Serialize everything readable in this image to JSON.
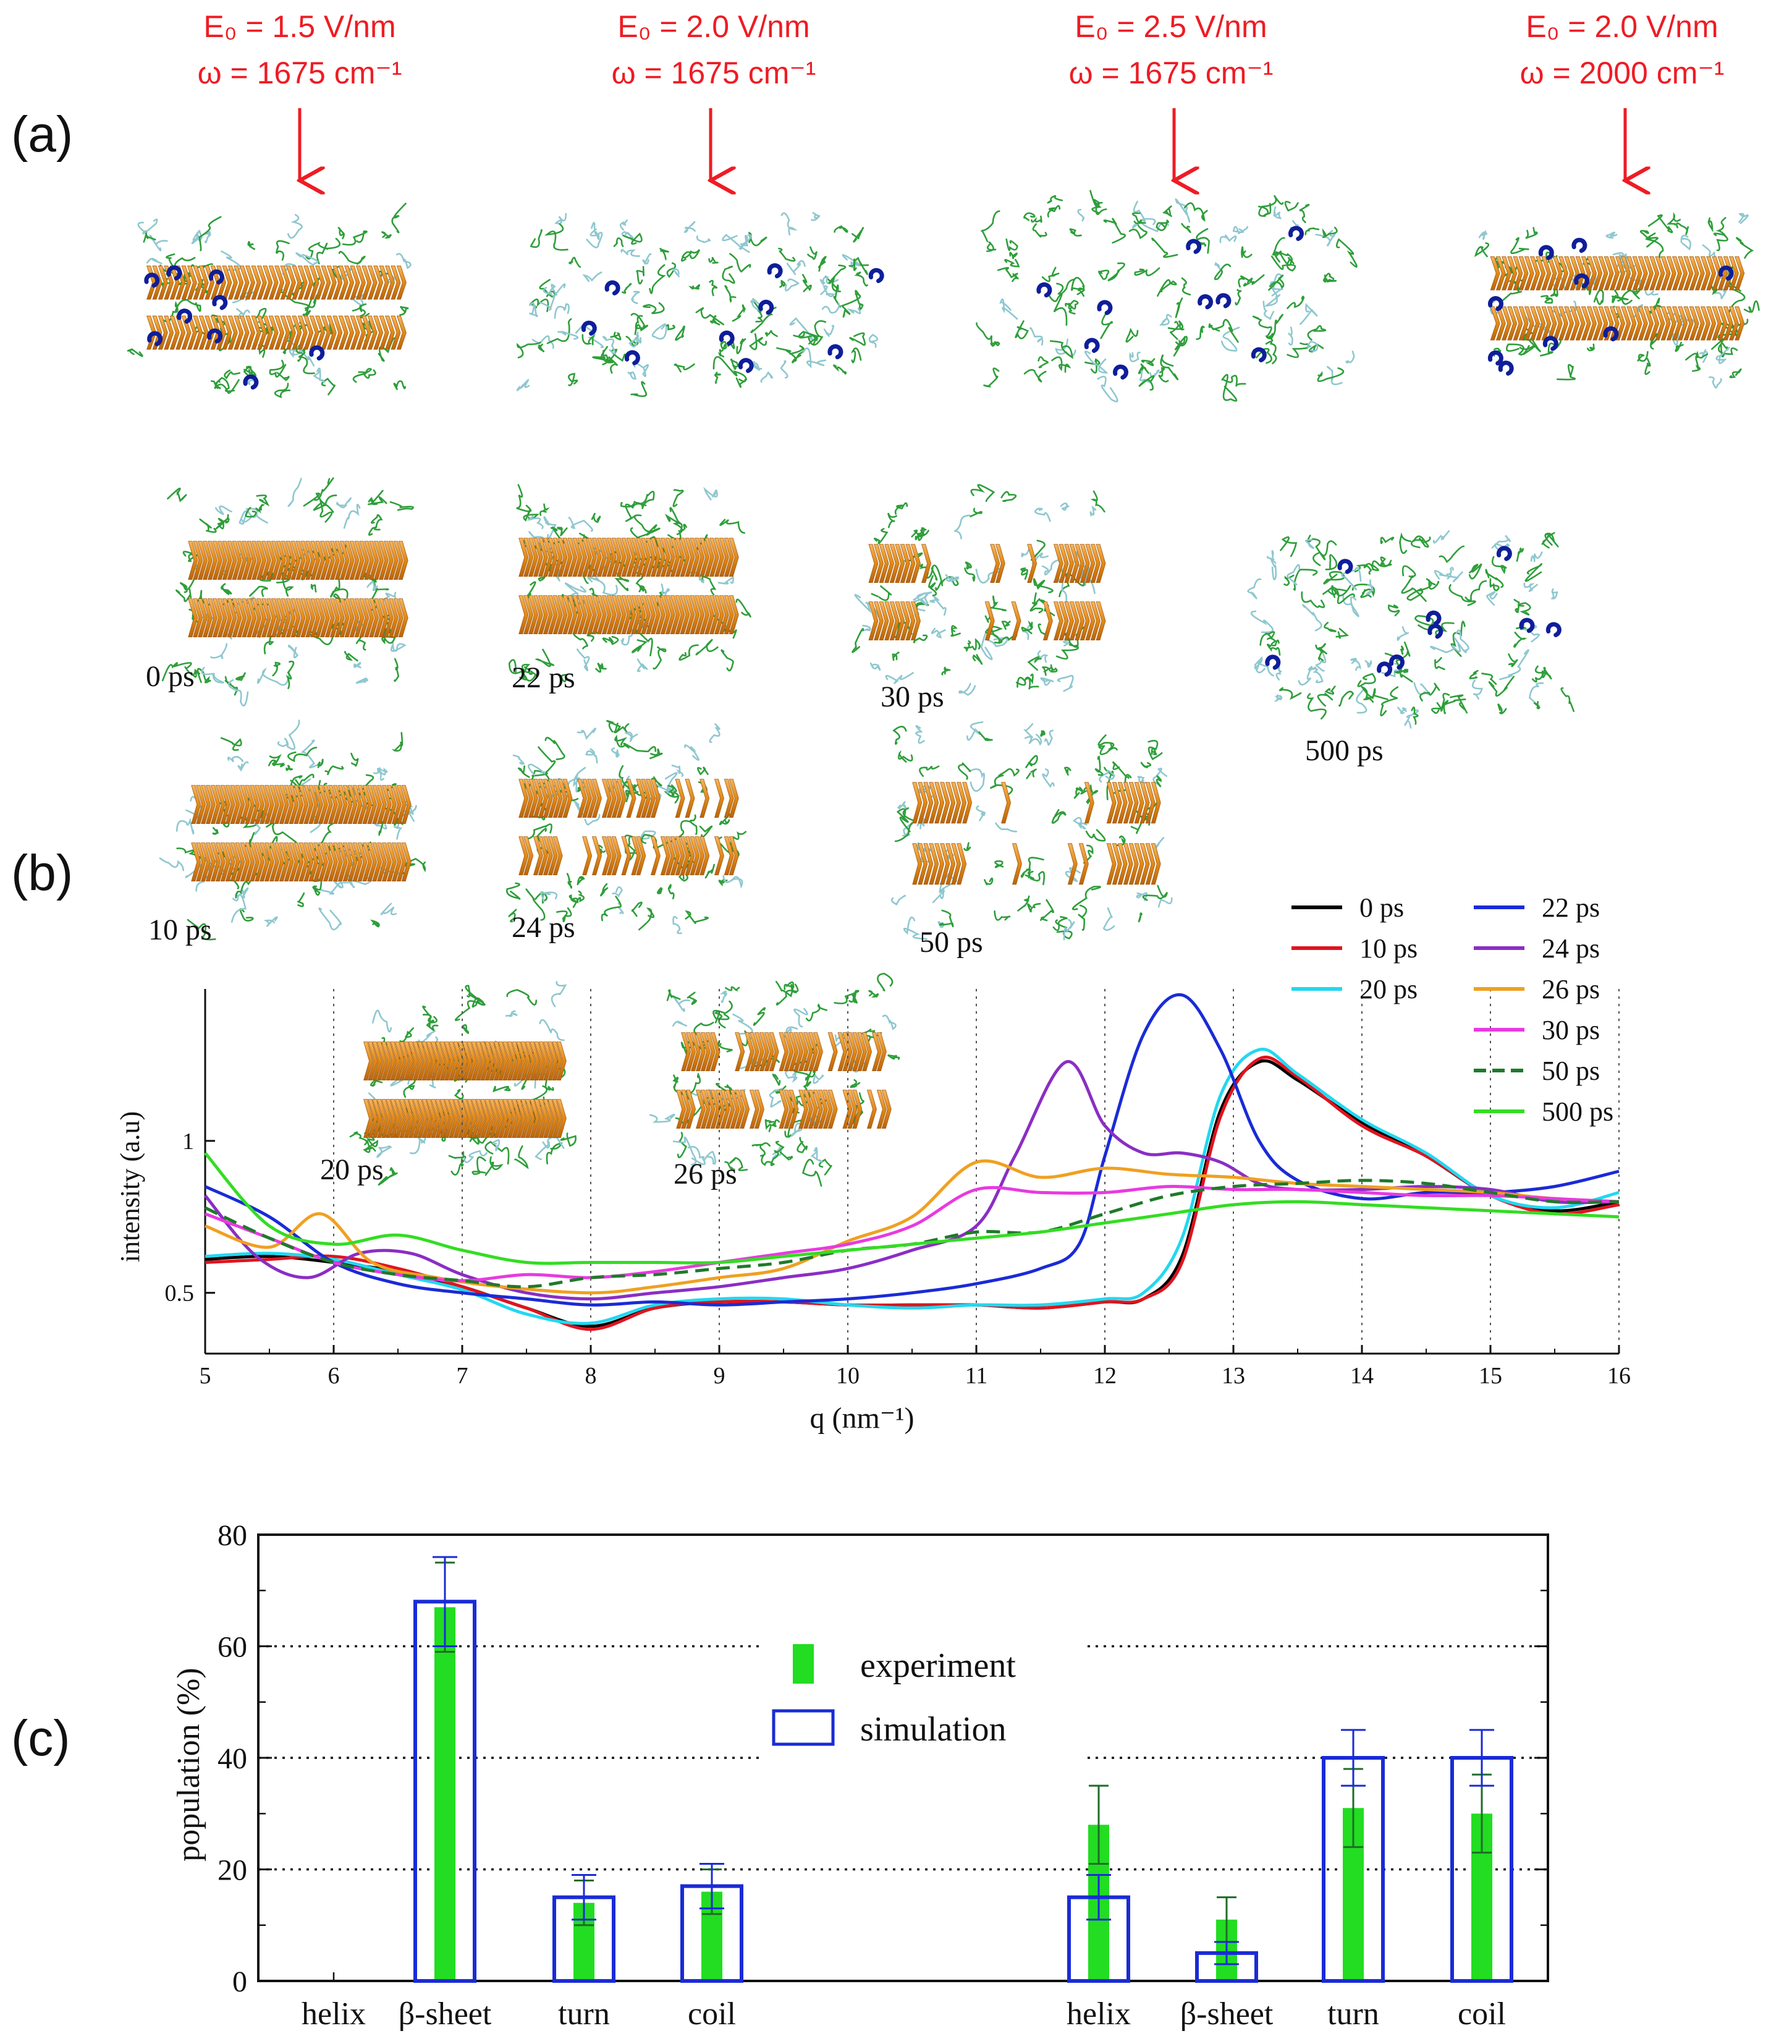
{
  "colors": {
    "red": "#ee1c24",
    "black": "#000000",
    "blue": "#1a2bd6",
    "green": "#22dd22",
    "gold": "#e8941c",
    "strand": "#2e9e3a",
    "helix": "#0f1e9a",
    "teal": "#8fc7cf"
  },
  "panel_a": {
    "label": "(a)",
    "conditions": [
      {
        "field": "E₀ = 1.5 V/nm",
        "freq": "ω = 1675 cm⁻¹",
        "state": "fibril"
      },
      {
        "field": "E₀ = 2.0 V/nm",
        "freq": "ω = 1675 cm⁻¹",
        "state": "disordered"
      },
      {
        "field": "E₀ = 2.5 V/nm",
        "freq": "ω = 1675 cm⁻¹",
        "state": "disordered"
      },
      {
        "field": "E₀ = 2.0 V/nm",
        "freq": "ω = 2000 cm⁻¹",
        "state": "fibril"
      }
    ]
  },
  "panel_b": {
    "label": "(b)",
    "snapshots": [
      {
        "time": "0 ps",
        "state": "fibril"
      },
      {
        "time": "22 ps",
        "state": "fibril"
      },
      {
        "time": "30 ps",
        "state": "partial"
      },
      {
        "time": "500 ps",
        "state": "disordered"
      },
      {
        "time": "10 ps",
        "state": "fibril"
      },
      {
        "time": "24 ps",
        "state": "partial"
      },
      {
        "time": "50 ps",
        "state": "partial"
      },
      {
        "time": "20 ps",
        "state": "fibril"
      },
      {
        "time": "26 ps",
        "state": "partial"
      }
    ]
  },
  "panel_c": {
    "label": "(c)"
  },
  "chart_data": [
    {
      "type": "line",
      "xlabel": "q (nm⁻¹)",
      "ylabel": "intensity (a.u)",
      "xlim": [
        5,
        16
      ],
      "ylim": [
        0.3,
        1.5
      ],
      "xticks": [
        5,
        6,
        7,
        8,
        9,
        10,
        11,
        12,
        13,
        14,
        15,
        16
      ],
      "yticks": [
        0.5,
        1
      ],
      "ytick_labels": [
        "0.5",
        "1"
      ],
      "grid_x": [
        6,
        7,
        8,
        9,
        10,
        11,
        12,
        13,
        14,
        15,
        16
      ],
      "legend": "top-right",
      "series": [
        {
          "name": "0 ps",
          "color": "#000000",
          "dash": false,
          "x": [
            5,
            5.5,
            6,
            6.5,
            7,
            7.5,
            8,
            8.5,
            9,
            9.5,
            10,
            10.5,
            11,
            11.5,
            12,
            12.3,
            12.6,
            12.9,
            13.2,
            13.5,
            14,
            14.5,
            15,
            15.5,
            16
          ],
          "y": [
            0.61,
            0.62,
            0.6,
            0.57,
            0.52,
            0.45,
            0.39,
            0.45,
            0.47,
            0.47,
            0.46,
            0.46,
            0.46,
            0.45,
            0.47,
            0.48,
            0.62,
            1.1,
            1.26,
            1.2,
            1.06,
            0.95,
            0.82,
            0.77,
            0.8
          ]
        },
        {
          "name": "10 ps",
          "color": "#e0141e",
          "dash": false,
          "x": [
            5,
            5.5,
            6,
            6.5,
            7,
            7.5,
            8,
            8.5,
            9,
            9.5,
            10,
            10.5,
            11,
            11.5,
            12,
            12.3,
            12.6,
            12.9,
            13.2,
            13.5,
            14,
            14.5,
            15,
            15.5,
            16
          ],
          "y": [
            0.6,
            0.61,
            0.62,
            0.58,
            0.52,
            0.45,
            0.38,
            0.45,
            0.47,
            0.47,
            0.46,
            0.46,
            0.46,
            0.45,
            0.47,
            0.48,
            0.6,
            1.08,
            1.27,
            1.21,
            1.05,
            0.95,
            0.82,
            0.76,
            0.79
          ]
        },
        {
          "name": "20 ps",
          "color": "#22d8f0",
          "dash": false,
          "x": [
            5,
            5.5,
            6,
            6.5,
            7,
            7.5,
            8,
            8.5,
            9,
            9.5,
            10,
            10.5,
            11,
            11.5,
            12,
            12.3,
            12.6,
            12.9,
            13.2,
            13.5,
            14,
            14.5,
            15,
            15.5,
            16
          ],
          "y": [
            0.62,
            0.63,
            0.61,
            0.56,
            0.51,
            0.43,
            0.4,
            0.46,
            0.48,
            0.48,
            0.46,
            0.45,
            0.46,
            0.46,
            0.48,
            0.5,
            0.68,
            1.15,
            1.3,
            1.22,
            1.07,
            0.96,
            0.82,
            0.78,
            0.83
          ]
        },
        {
          "name": "22 ps",
          "color": "#1a2bd6",
          "dash": false,
          "x": [
            5,
            5.5,
            6,
            6.5,
            7,
            7.5,
            8,
            8.5,
            9,
            9.5,
            10,
            10.5,
            11,
            11.5,
            11.8,
            12,
            12.3,
            12.6,
            12.9,
            13.2,
            13.5,
            14,
            14.5,
            15,
            15.5,
            16
          ],
          "y": [
            0.85,
            0.75,
            0.6,
            0.53,
            0.5,
            0.48,
            0.46,
            0.47,
            0.46,
            0.47,
            0.48,
            0.5,
            0.53,
            0.58,
            0.66,
            0.95,
            1.35,
            1.48,
            1.3,
            1.0,
            0.87,
            0.81,
            0.83,
            0.83,
            0.85,
            0.9
          ]
        },
        {
          "name": "24 ps",
          "color": "#8a2ec4",
          "dash": false,
          "x": [
            5,
            5.4,
            5.8,
            6.2,
            6.6,
            7,
            7.5,
            8,
            8.5,
            9,
            9.5,
            10,
            10.5,
            11,
            11.3,
            11.7,
            12,
            12.3,
            12.6,
            12.9,
            13.2,
            13.5,
            14,
            14.5,
            15,
            15.5,
            16
          ],
          "y": [
            0.82,
            0.62,
            0.55,
            0.63,
            0.63,
            0.56,
            0.5,
            0.48,
            0.5,
            0.52,
            0.55,
            0.58,
            0.64,
            0.72,
            0.95,
            1.26,
            1.05,
            0.96,
            0.96,
            0.93,
            0.86,
            0.84,
            0.84,
            0.85,
            0.84,
            0.8,
            0.8
          ]
        },
        {
          "name": "26 ps",
          "color": "#f0a020",
          "dash": false,
          "x": [
            5,
            5.5,
            5.9,
            6.3,
            6.8,
            7.3,
            8,
            8.5,
            9,
            9.5,
            10,
            10.5,
            11,
            11.5,
            12,
            12.5,
            13,
            13.5,
            14,
            14.5,
            15,
            15.5,
            16
          ],
          "y": [
            0.72,
            0.65,
            0.76,
            0.6,
            0.55,
            0.52,
            0.5,
            0.52,
            0.55,
            0.58,
            0.67,
            0.75,
            0.93,
            0.88,
            0.91,
            0.89,
            0.88,
            0.86,
            0.85,
            0.84,
            0.83,
            0.81,
            0.8
          ]
        },
        {
          "name": "30 ps",
          "color": "#e83ae0",
          "dash": false,
          "x": [
            5,
            5.5,
            6,
            6.5,
            7,
            7.5,
            8,
            8.5,
            9,
            9.5,
            10,
            10.5,
            11,
            11.5,
            12,
            12.5,
            13,
            13.5,
            14,
            14.5,
            15,
            15.5,
            16
          ],
          "y": [
            0.76,
            0.68,
            0.6,
            0.56,
            0.54,
            0.56,
            0.55,
            0.57,
            0.6,
            0.63,
            0.66,
            0.72,
            0.84,
            0.83,
            0.83,
            0.85,
            0.84,
            0.84,
            0.83,
            0.82,
            0.82,
            0.81,
            0.8
          ]
        },
        {
          "name": "50 ps",
          "color": "#1f7a2a",
          "dash": true,
          "x": [
            5,
            5.5,
            6,
            6.5,
            7,
            7.5,
            8,
            8.5,
            9,
            9.5,
            10,
            10.5,
            11,
            11.5,
            12,
            12.5,
            13,
            13.5,
            14,
            14.5,
            15,
            15.5,
            16
          ],
          "y": [
            0.78,
            0.68,
            0.6,
            0.56,
            0.54,
            0.52,
            0.55,
            0.56,
            0.58,
            0.6,
            0.64,
            0.66,
            0.7,
            0.7,
            0.76,
            0.82,
            0.85,
            0.86,
            0.87,
            0.86,
            0.83,
            0.8,
            0.8
          ]
        },
        {
          "name": "500 ps",
          "color": "#33dd22",
          "dash": false,
          "x": [
            5,
            5.5,
            6,
            6.5,
            7,
            7.5,
            8,
            8.5,
            9,
            9.5,
            10,
            10.5,
            11,
            11.5,
            12,
            12.5,
            13,
            13.5,
            14,
            14.5,
            15,
            15.5,
            16
          ],
          "y": [
            0.96,
            0.72,
            0.66,
            0.69,
            0.64,
            0.6,
            0.6,
            0.6,
            0.6,
            0.62,
            0.64,
            0.66,
            0.68,
            0.7,
            0.73,
            0.76,
            0.79,
            0.8,
            0.79,
            0.78,
            0.77,
            0.76,
            0.75
          ]
        }
      ]
    },
    {
      "type": "bar",
      "ylabel": "population (%)",
      "ylim": [
        0,
        80
      ],
      "yticks": [
        0,
        20,
        40,
        60,
        80
      ],
      "grid_y": [
        20,
        40,
        60
      ],
      "legend": "top-center",
      "categories": [
        "helix",
        "β-sheet",
        "turn",
        "coil",
        "helix",
        "β-sheet",
        "turn",
        "coil"
      ],
      "series": [
        {
          "name": "experiment",
          "color": "#22dd22",
          "values": [
            0,
            67,
            14,
            16,
            28,
            11,
            31,
            30
          ],
          "error": [
            0,
            8,
            4,
            4,
            7,
            4,
            7,
            7
          ]
        },
        {
          "name": "simulation",
          "color": "#1a2bd6",
          "values": [
            0,
            68,
            15,
            17,
            15,
            5,
            40,
            40
          ],
          "error": [
            0,
            8,
            4,
            4,
            4,
            2,
            5,
            5
          ]
        }
      ]
    }
  ]
}
